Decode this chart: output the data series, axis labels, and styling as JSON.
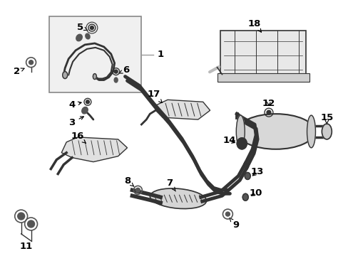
{
  "background_color": "#ffffff",
  "line_color": "#333333",
  "label_color": "#000000",
  "figsize": [
    4.89,
    3.6
  ],
  "dpi": 100,
  "xlim": [
    0,
    489
  ],
  "ylim": [
    0,
    360
  ]
}
